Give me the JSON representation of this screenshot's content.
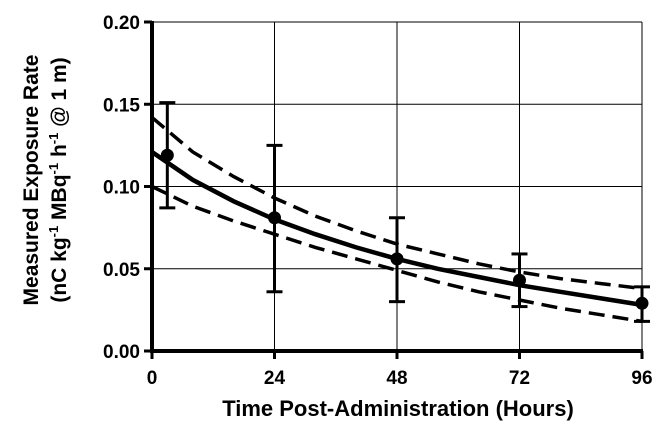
{
  "chart_data": {
    "type": "line",
    "title": "",
    "xlabel": "Time Post-Administration (Hours)",
    "ylabel": {
      "line1": "Measured Exposure Rate",
      "line2_prefix": "(nC kg",
      "line2_sup1": "-1",
      "line2_mid1": " MBq",
      "line2_sup2": "-1",
      "line2_mid2": " h",
      "line2_sup3": "-1",
      "line2_suffix": " @ 1 m)"
    },
    "xlim": [
      0,
      96
    ],
    "ylim": [
      0,
      0.2
    ],
    "xticks": [
      0,
      24,
      48,
      72,
      96
    ],
    "xtick_labels": [
      "0",
      "24",
      "48",
      "72",
      "96"
    ],
    "yticks": [
      0,
      0.05,
      0.1,
      0.15,
      0.2
    ],
    "ytick_labels": [
      "0.00",
      "0.05",
      "0.10",
      "0.15",
      "0.20"
    ],
    "grid": true,
    "legend": "none",
    "points": {
      "x": [
        3,
        24,
        48,
        72,
        96
      ],
      "y": [
        0.119,
        0.081,
        0.056,
        0.043,
        0.029
      ],
      "err_low": [
        0.087,
        0.036,
        0.03,
        0.027,
        0.018
      ],
      "err_high": [
        0.151,
        0.125,
        0.081,
        0.059,
        0.039
      ]
    },
    "fit": {
      "x": [
        0,
        8,
        16,
        24,
        32,
        40,
        48,
        56,
        64,
        72,
        80,
        88,
        96
      ],
      "y": [
        0.121,
        0.104,
        0.091,
        0.08,
        0.071,
        0.063,
        0.056,
        0.05,
        0.045,
        0.04,
        0.036,
        0.032,
        0.028
      ]
    },
    "ci_upper": {
      "x": [
        0,
        8,
        16,
        24,
        32,
        40,
        48,
        56,
        64,
        72,
        80,
        88,
        96
      ],
      "y": [
        0.142,
        0.121,
        0.106,
        0.093,
        0.082,
        0.073,
        0.065,
        0.059,
        0.053,
        0.048,
        0.044,
        0.041,
        0.038
      ]
    },
    "ci_lower": {
      "x": [
        0,
        8,
        16,
        24,
        32,
        40,
        48,
        56,
        64,
        72,
        80,
        88,
        96
      ],
      "y": [
        0.1,
        0.088,
        0.079,
        0.071,
        0.063,
        0.056,
        0.049,
        0.042,
        0.036,
        0.031,
        0.026,
        0.022,
        0.018
      ]
    }
  }
}
